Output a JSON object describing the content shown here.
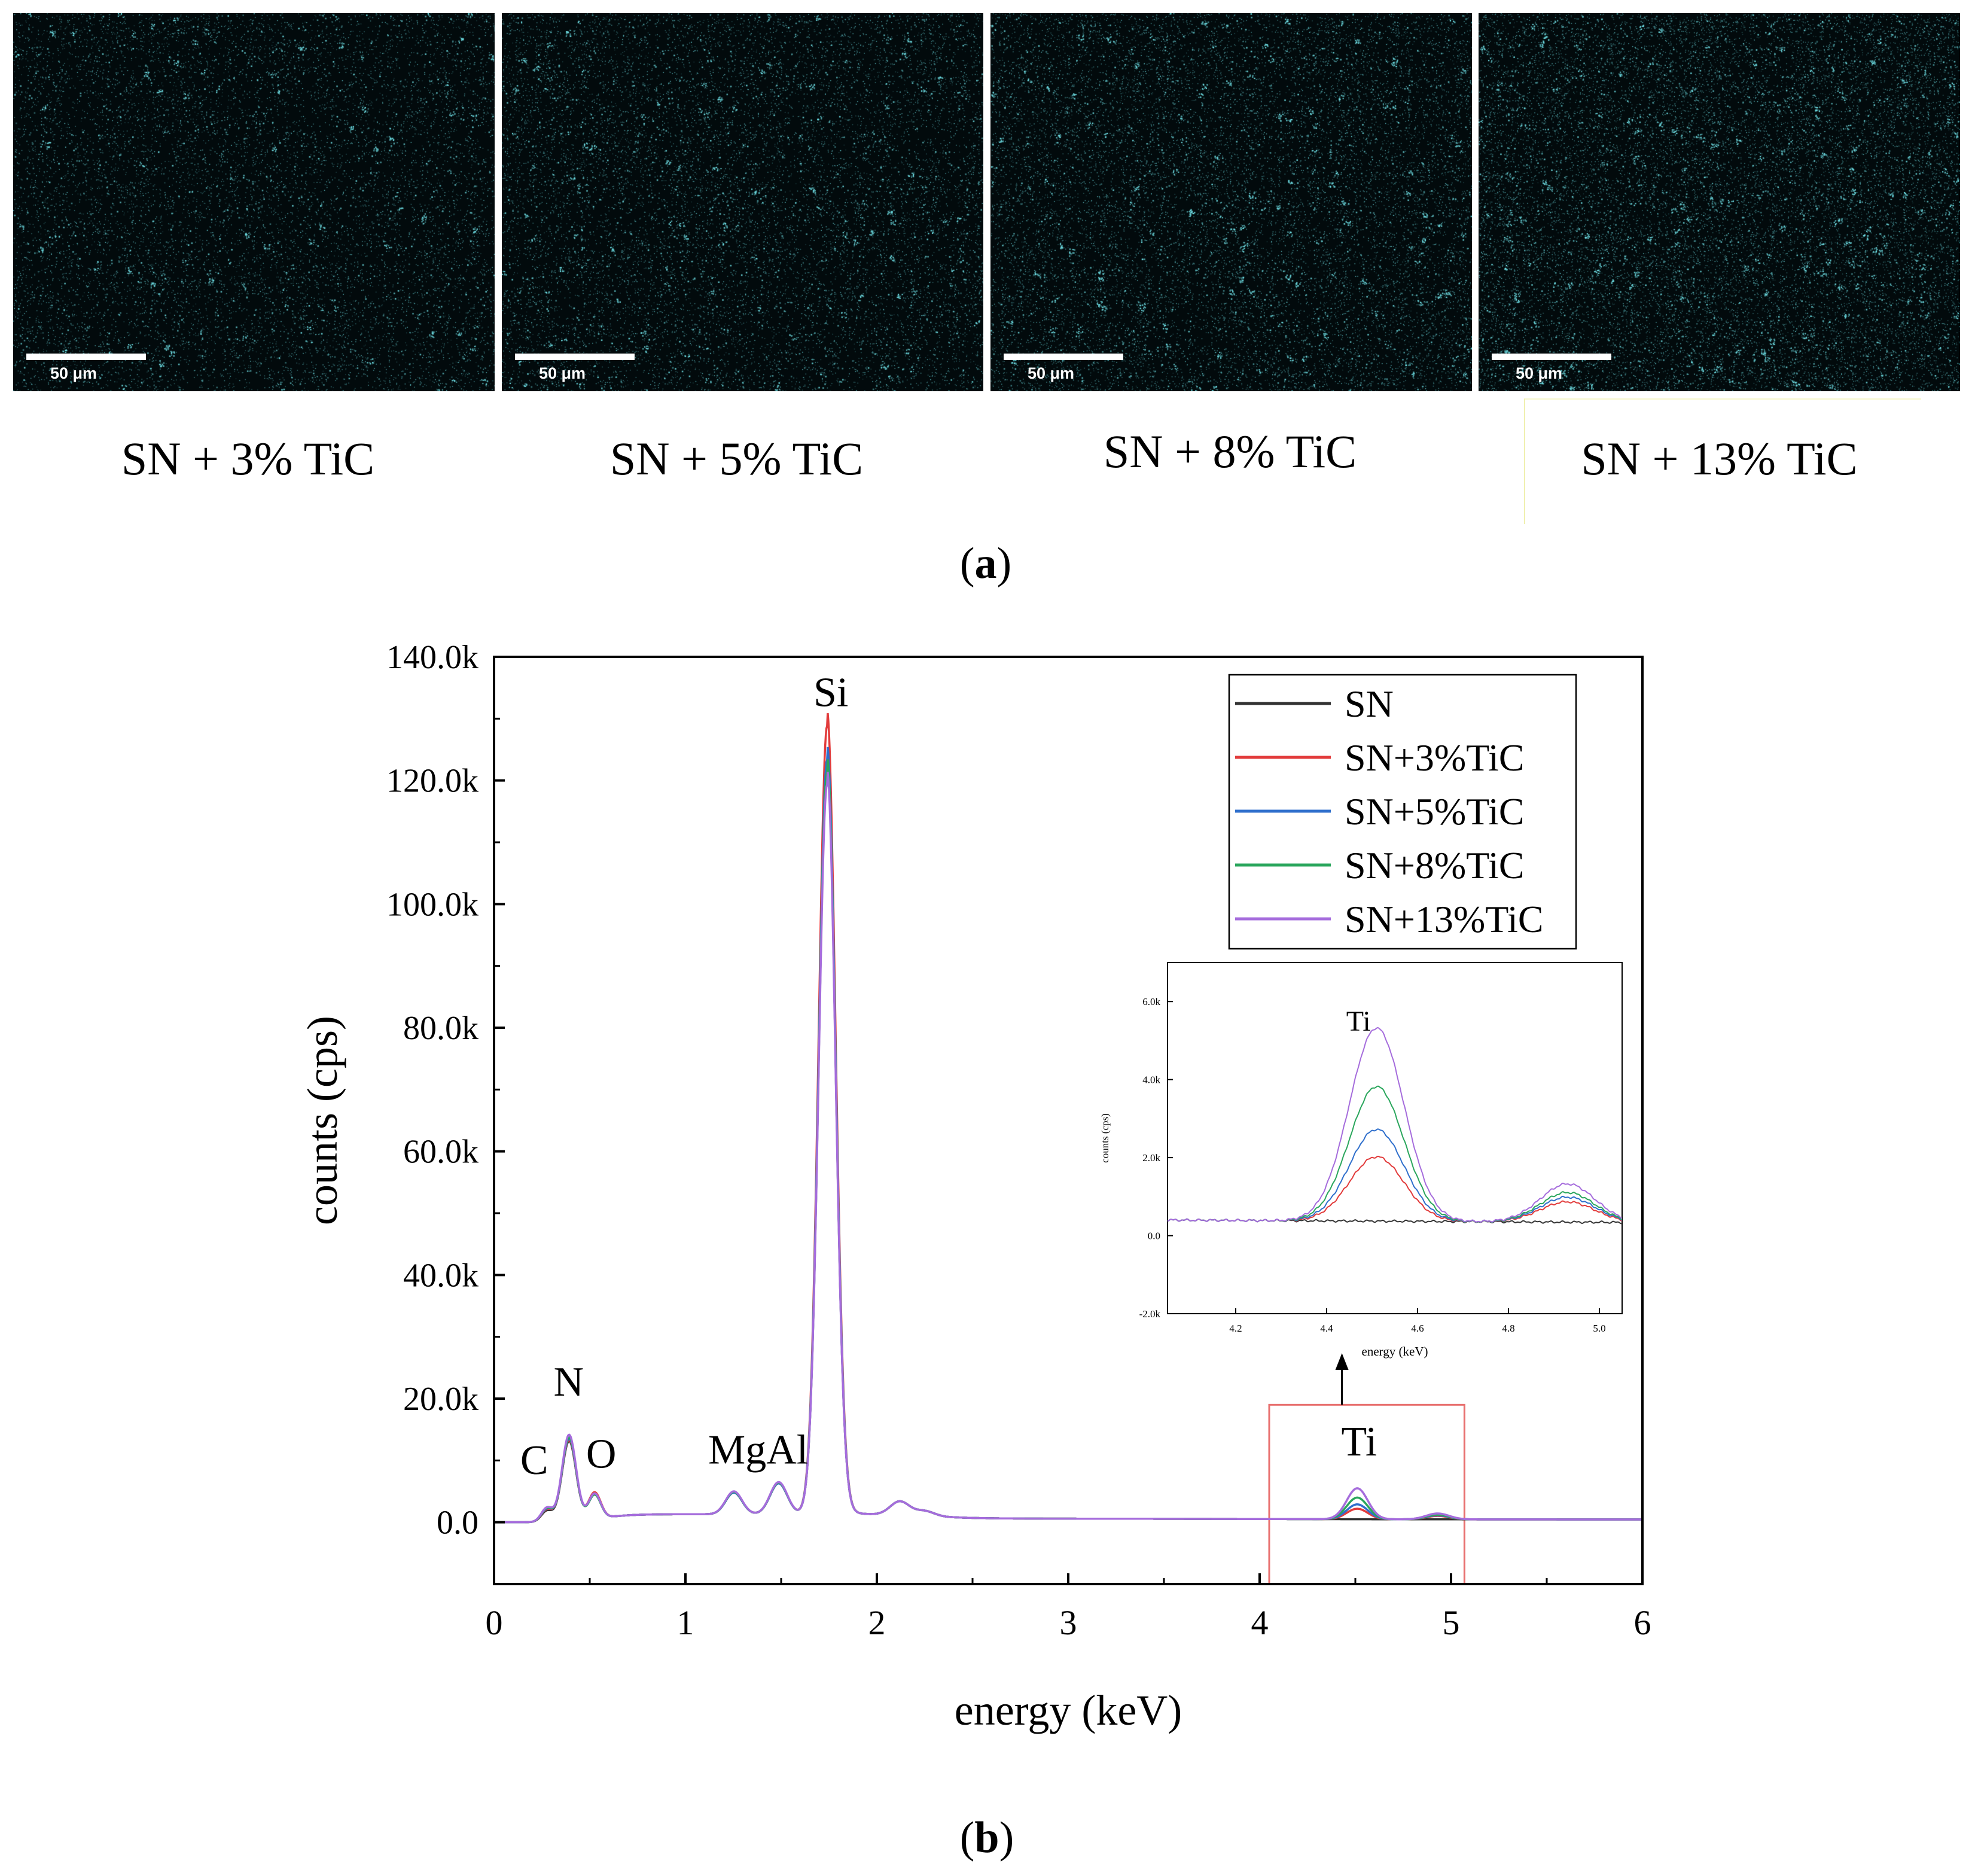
{
  "panel_a": {
    "label": "a",
    "maps": [
      {
        "scale_label": "50 μm",
        "caption": "SN + 3% TiC",
        "density": 0.03
      },
      {
        "scale_label": "50 μm",
        "caption": "SN + 5% TiC",
        "density": 0.05
      },
      {
        "scale_label": "50 μm",
        "caption": "SN + 8% TiC",
        "density": 0.08
      },
      {
        "scale_label": "50 μm",
        "caption": "SN + 13% TiC",
        "density": 0.13
      }
    ],
    "map_color": "#6fe0e6"
  },
  "panel_b": {
    "label": "b"
  },
  "chart_data": [
    {
      "type": "line",
      "title": "",
      "xlabel": "energy (keV)",
      "ylabel": "counts (cps)",
      "xlim": [
        0,
        6
      ],
      "ylim": [
        -10000,
        140000
      ],
      "xticks": [
        0,
        1,
        2,
        3,
        4,
        5,
        6
      ],
      "xtick_labels": [
        "0",
        "1",
        "2",
        "3",
        "4",
        "5",
        "6"
      ],
      "yticks": [
        0,
        20000,
        40000,
        60000,
        80000,
        100000,
        120000,
        140000
      ],
      "ytick_labels": [
        "0.0",
        "20.0k",
        "40.0k",
        "60.0k",
        "80.0k",
        "100.0k",
        "120.0k",
        "140.0k"
      ],
      "legend_position": "top-right",
      "series": [
        {
          "name": "SN",
          "color": "#333333",
          "peaks": {
            "C": 1800,
            "N": 13000,
            "O": 4200,
            "Mg": 3500,
            "Al": 5000,
            "Si": 120000,
            "Ti": 0,
            "Ti2": 0
          }
        },
        {
          "name": "SN+3%TiC",
          "color": "#e23b3b",
          "peaks": {
            "C": 2000,
            "N": 13200,
            "O": 4300,
            "Mg": 3600,
            "Al": 5100,
            "Si": 127500,
            "Ti": 1700,
            "Ti2": 550
          }
        },
        {
          "name": "SN+5%TiC",
          "color": "#2f6fcc",
          "peaks": {
            "C": 2100,
            "N": 13400,
            "O": 4000,
            "Mg": 3500,
            "Al": 5000,
            "Si": 122000,
            "Ti": 2400,
            "Ti2": 650
          }
        },
        {
          "name": "SN+8%TiC",
          "color": "#2aa65c",
          "peaks": {
            "C": 2200,
            "N": 13600,
            "O": 3900,
            "Mg": 3600,
            "Al": 5100,
            "Si": 120000,
            "Ti": 3500,
            "Ti2": 750
          }
        },
        {
          "name": "SN+13%TiC",
          "color": "#a56cdc",
          "peaks": {
            "C": 2300,
            "N": 14000,
            "O": 4100,
            "Mg": 3700,
            "Al": 5200,
            "Si": 118000,
            "Ti": 5000,
            "Ti2": 950
          }
        }
      ],
      "annotations": [
        {
          "text": "C",
          "x": 0.21,
          "y": 7800
        },
        {
          "text": "N",
          "x": 0.39,
          "y": 20500
        },
        {
          "text": "O",
          "x": 0.56,
          "y": 8800
        },
        {
          "text": "MgAl",
          "x": 1.38,
          "y": 9500
        },
        {
          "text": "Si",
          "x": 1.76,
          "y": 132000
        },
        {
          "text": "Ti",
          "x": 4.52,
          "y": 10800
        }
      ],
      "highlight_region": {
        "x": [
          4.05,
          5.07
        ],
        "y": [
          -10000,
          19000
        ],
        "color": "#e8706f"
      }
    },
    {
      "type": "line",
      "title": "",
      "xlabel": "energy (keV)",
      "ylabel": "counts (cps)",
      "xlim": [
        4.05,
        5.05
      ],
      "ylim": [
        -2000,
        7000
      ],
      "xticks": [
        4.2,
        4.4,
        4.6,
        4.8,
        5.0
      ],
      "xtick_labels": [
        "4.2",
        "4.4",
        "4.6",
        "4.8",
        "5.0"
      ],
      "yticks": [
        -2000,
        0,
        2000,
        4000,
        6000
      ],
      "ytick_labels": [
        "-2.0k",
        "0.0",
        "2.0k",
        "4.0k",
        "6.0k"
      ],
      "baseline": 400,
      "series": [
        {
          "name": "SN",
          "color": "#333333",
          "ti_peak": 0,
          "ti2_peak": 0
        },
        {
          "name": "SN+3%TiC",
          "color": "#e23b3b",
          "ti_peak": 1650,
          "ti2_peak": 520
        },
        {
          "name": "SN+5%TiC",
          "color": "#2f6fcc",
          "ti_peak": 2350,
          "ti2_peak": 640
        },
        {
          "name": "SN+8%TiC",
          "color": "#2aa65c",
          "ti_peak": 3450,
          "ti2_peak": 760
        },
        {
          "name": "SN+13%TiC",
          "color": "#a56cdc",
          "ti_peak": 4950,
          "ti2_peak": 980
        }
      ],
      "annotations": [
        {
          "text": "Ti",
          "x": 4.47,
          "y": 5250
        }
      ]
    }
  ]
}
